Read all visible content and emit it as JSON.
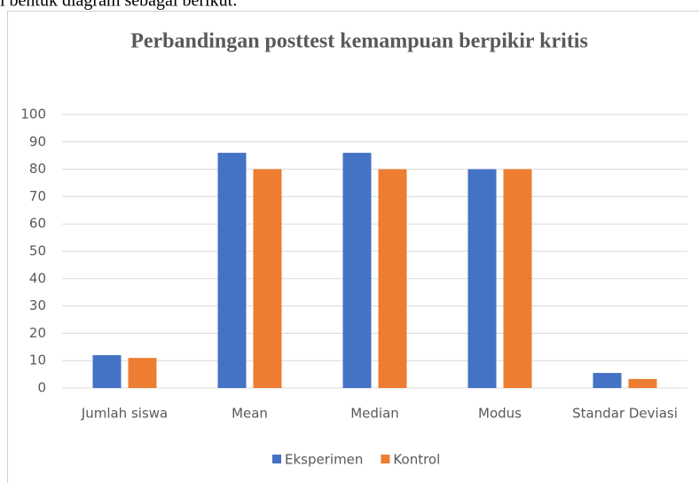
{
  "caption": "i bentuk diagram sebagai berikut:",
  "chart_data": {
    "type": "bar",
    "title": "Perbandingan posttest kemampuan berpikir kritis",
    "categories": [
      "Jumlah siswa",
      "Mean",
      "Median",
      "Modus",
      "Standar Deviasi"
    ],
    "series": [
      {
        "name": "Eksperimen",
        "color": "#4472c4",
        "values": [
          12,
          86,
          86,
          80,
          5.5
        ]
      },
      {
        "name": "Kontrol",
        "color": "#ed7d31",
        "values": [
          11,
          80,
          80,
          80,
          3.3
        ]
      }
    ],
    "ylim": [
      0,
      100
    ],
    "yticks": [
      0,
      10,
      20,
      30,
      40,
      50,
      60,
      70,
      80,
      90,
      100
    ],
    "grid": true,
    "legend": "bottom"
  }
}
